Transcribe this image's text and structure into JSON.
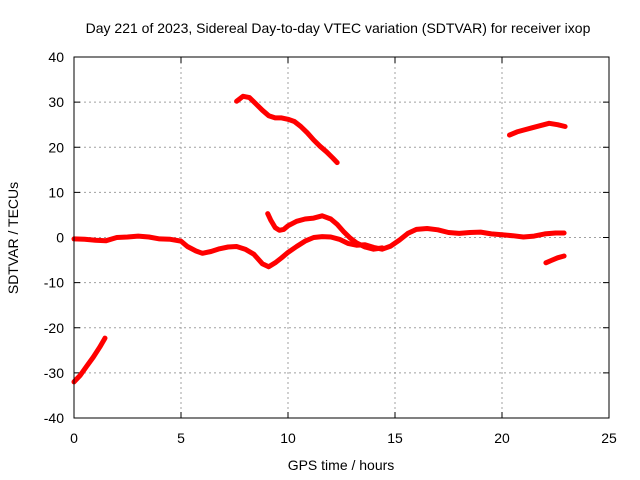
{
  "chart_data": {
    "type": "line",
    "title": "Day 221 of 2023, Sidereal Day-to-day VTEC variation (SDTVAR) for receiver ixop",
    "xlabel": "GPS time / hours",
    "ylabel": "SDTVAR / TECUs",
    "xlim": [
      0,
      25
    ],
    "ylim": [
      -40,
      40
    ],
    "xticks": [
      "0",
      "5",
      "10",
      "15",
      "20",
      "25"
    ],
    "yticks": [
      "40",
      "30",
      "20",
      "10",
      "0",
      "-10",
      "-20",
      "-30",
      "-40"
    ],
    "grid": true,
    "color": "#ff0000",
    "series": [
      {
        "name": "arc-low-start",
        "x": [
          0.0,
          0.3,
          0.6,
          0.9,
          1.2,
          1.45
        ],
        "y": [
          -32,
          -30.5,
          -28.5,
          -26.5,
          -24.3,
          -22.3
        ]
      },
      {
        "name": "arc-main-1",
        "x": [
          0,
          0.5,
          1,
          1.5,
          2,
          2.5,
          3,
          3.5,
          4,
          4.5,
          5,
          5.3,
          5.7,
          6,
          6.4,
          6.8,
          7.2,
          7.6,
          8,
          8.4,
          8.8,
          9.1,
          9.4,
          9.7,
          10,
          10.4,
          10.8,
          11.2,
          11.6,
          12,
          12.4,
          12.8,
          13.2,
          13.6,
          14,
          14.4,
          14.8,
          15.2,
          15.6,
          16,
          16.5,
          17,
          17.5,
          18,
          18.5,
          19,
          19.5,
          20,
          20.5,
          21,
          21.5,
          22,
          22.5,
          22.9
        ],
        "y": [
          -0.3,
          -0.4,
          -0.6,
          -0.7,
          0,
          0.1,
          0.3,
          0.1,
          -0.3,
          -0.4,
          -0.8,
          -2,
          -3,
          -3.5,
          -3.1,
          -2.5,
          -2.1,
          -2.0,
          -2.6,
          -3.7,
          -5.8,
          -6.5,
          -5.6,
          -4.5,
          -3.3,
          -2.0,
          -0.8,
          0,
          0.2,
          0.1,
          -0.4,
          -1.3,
          -1.7,
          -1.6,
          -2.2,
          -2.6,
          -1.9,
          -0.6,
          0.9,
          1.8,
          2.0,
          1.7,
          1.1,
          0.9,
          1.1,
          1.2,
          0.8,
          0.6,
          0.4,
          0.1,
          0.3,
          0.8,
          1.0,
          1.0
        ]
      },
      {
        "name": "arc-mid-bump",
        "x": [
          9.05,
          9.2,
          9.4,
          9.6,
          9.8,
          10,
          10.4,
          10.8,
          11.2,
          11.6,
          12,
          12.3,
          12.6,
          12.9,
          13.2,
          13.6,
          14,
          14.4
        ],
        "y": [
          5.3,
          3.8,
          2.2,
          1.6,
          1.8,
          2.6,
          3.6,
          4.1,
          4.3,
          4.8,
          4.1,
          2.9,
          1.3,
          -0.1,
          -1.2,
          -2.1,
          -2.6,
          -2.3
        ]
      },
      {
        "name": "arc-high-1",
        "x": [
          7.6,
          7.9,
          8.2,
          8.5,
          8.8,
          9.1,
          9.4,
          9.7,
          10,
          10.3,
          10.6,
          10.9,
          11.2,
          11.5,
          11.8,
          12.1,
          12.3
        ],
        "y": [
          30.2,
          31.3,
          31.0,
          29.6,
          28.2,
          27.0,
          26.5,
          26.5,
          26.2,
          25.7,
          24.6,
          23.2,
          21.6,
          20.2,
          19.0,
          17.6,
          16.6
        ]
      },
      {
        "name": "arc-high-2",
        "x": [
          20.35,
          20.7,
          21.0,
          21.4,
          21.8,
          22.2,
          22.6,
          22.95
        ],
        "y": [
          22.7,
          23.4,
          23.8,
          24.3,
          24.8,
          25.3,
          25.0,
          24.6
        ]
      },
      {
        "name": "arc-low-end",
        "x": [
          22.05,
          22.3,
          22.6,
          22.9
        ],
        "y": [
          -5.6,
          -5.1,
          -4.5,
          -4.1
        ]
      }
    ]
  }
}
